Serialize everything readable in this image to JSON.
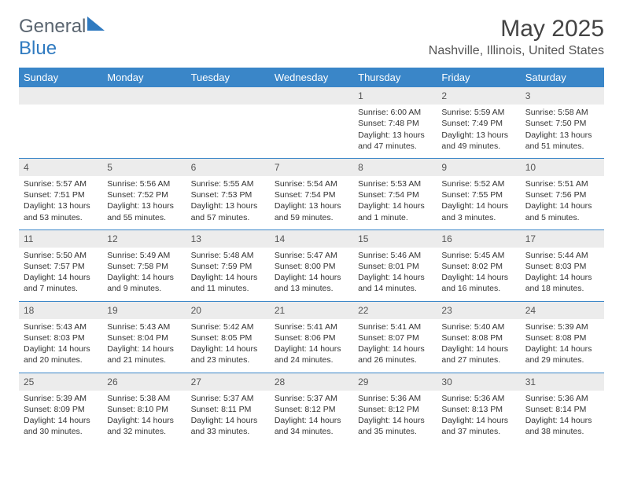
{
  "logo": {
    "general": "General",
    "blue": "Blue"
  },
  "title": "May 2025",
  "location": "Nashville, Illinois, United States",
  "colors": {
    "header_bg": "#3a86c8",
    "header_text": "#ffffff",
    "daynum_bg": "#ececec",
    "row_border": "#3a86c8",
    "logo_gray": "#5a6570",
    "logo_blue": "#2f7ac0"
  },
  "day_headers": [
    "Sunday",
    "Monday",
    "Tuesday",
    "Wednesday",
    "Thursday",
    "Friday",
    "Saturday"
  ],
  "weeks": [
    [
      null,
      null,
      null,
      null,
      {
        "n": "1",
        "sr": "Sunrise: 6:00 AM",
        "ss": "Sunset: 7:48 PM",
        "d1": "Daylight: 13 hours",
        "d2": "and 47 minutes."
      },
      {
        "n": "2",
        "sr": "Sunrise: 5:59 AM",
        "ss": "Sunset: 7:49 PM",
        "d1": "Daylight: 13 hours",
        "d2": "and 49 minutes."
      },
      {
        "n": "3",
        "sr": "Sunrise: 5:58 AM",
        "ss": "Sunset: 7:50 PM",
        "d1": "Daylight: 13 hours",
        "d2": "and 51 minutes."
      }
    ],
    [
      {
        "n": "4",
        "sr": "Sunrise: 5:57 AM",
        "ss": "Sunset: 7:51 PM",
        "d1": "Daylight: 13 hours",
        "d2": "and 53 minutes."
      },
      {
        "n": "5",
        "sr": "Sunrise: 5:56 AM",
        "ss": "Sunset: 7:52 PM",
        "d1": "Daylight: 13 hours",
        "d2": "and 55 minutes."
      },
      {
        "n": "6",
        "sr": "Sunrise: 5:55 AM",
        "ss": "Sunset: 7:53 PM",
        "d1": "Daylight: 13 hours",
        "d2": "and 57 minutes."
      },
      {
        "n": "7",
        "sr": "Sunrise: 5:54 AM",
        "ss": "Sunset: 7:54 PM",
        "d1": "Daylight: 13 hours",
        "d2": "and 59 minutes."
      },
      {
        "n": "8",
        "sr": "Sunrise: 5:53 AM",
        "ss": "Sunset: 7:54 PM",
        "d1": "Daylight: 14 hours",
        "d2": "and 1 minute."
      },
      {
        "n": "9",
        "sr": "Sunrise: 5:52 AM",
        "ss": "Sunset: 7:55 PM",
        "d1": "Daylight: 14 hours",
        "d2": "and 3 minutes."
      },
      {
        "n": "10",
        "sr": "Sunrise: 5:51 AM",
        "ss": "Sunset: 7:56 PM",
        "d1": "Daylight: 14 hours",
        "d2": "and 5 minutes."
      }
    ],
    [
      {
        "n": "11",
        "sr": "Sunrise: 5:50 AM",
        "ss": "Sunset: 7:57 PM",
        "d1": "Daylight: 14 hours",
        "d2": "and 7 minutes."
      },
      {
        "n": "12",
        "sr": "Sunrise: 5:49 AM",
        "ss": "Sunset: 7:58 PM",
        "d1": "Daylight: 14 hours",
        "d2": "and 9 minutes."
      },
      {
        "n": "13",
        "sr": "Sunrise: 5:48 AM",
        "ss": "Sunset: 7:59 PM",
        "d1": "Daylight: 14 hours",
        "d2": "and 11 minutes."
      },
      {
        "n": "14",
        "sr": "Sunrise: 5:47 AM",
        "ss": "Sunset: 8:00 PM",
        "d1": "Daylight: 14 hours",
        "d2": "and 13 minutes."
      },
      {
        "n": "15",
        "sr": "Sunrise: 5:46 AM",
        "ss": "Sunset: 8:01 PM",
        "d1": "Daylight: 14 hours",
        "d2": "and 14 minutes."
      },
      {
        "n": "16",
        "sr": "Sunrise: 5:45 AM",
        "ss": "Sunset: 8:02 PM",
        "d1": "Daylight: 14 hours",
        "d2": "and 16 minutes."
      },
      {
        "n": "17",
        "sr": "Sunrise: 5:44 AM",
        "ss": "Sunset: 8:03 PM",
        "d1": "Daylight: 14 hours",
        "d2": "and 18 minutes."
      }
    ],
    [
      {
        "n": "18",
        "sr": "Sunrise: 5:43 AM",
        "ss": "Sunset: 8:03 PM",
        "d1": "Daylight: 14 hours",
        "d2": "and 20 minutes."
      },
      {
        "n": "19",
        "sr": "Sunrise: 5:43 AM",
        "ss": "Sunset: 8:04 PM",
        "d1": "Daylight: 14 hours",
        "d2": "and 21 minutes."
      },
      {
        "n": "20",
        "sr": "Sunrise: 5:42 AM",
        "ss": "Sunset: 8:05 PM",
        "d1": "Daylight: 14 hours",
        "d2": "and 23 minutes."
      },
      {
        "n": "21",
        "sr": "Sunrise: 5:41 AM",
        "ss": "Sunset: 8:06 PM",
        "d1": "Daylight: 14 hours",
        "d2": "and 24 minutes."
      },
      {
        "n": "22",
        "sr": "Sunrise: 5:41 AM",
        "ss": "Sunset: 8:07 PM",
        "d1": "Daylight: 14 hours",
        "d2": "and 26 minutes."
      },
      {
        "n": "23",
        "sr": "Sunrise: 5:40 AM",
        "ss": "Sunset: 8:08 PM",
        "d1": "Daylight: 14 hours",
        "d2": "and 27 minutes."
      },
      {
        "n": "24",
        "sr": "Sunrise: 5:39 AM",
        "ss": "Sunset: 8:08 PM",
        "d1": "Daylight: 14 hours",
        "d2": "and 29 minutes."
      }
    ],
    [
      {
        "n": "25",
        "sr": "Sunrise: 5:39 AM",
        "ss": "Sunset: 8:09 PM",
        "d1": "Daylight: 14 hours",
        "d2": "and 30 minutes."
      },
      {
        "n": "26",
        "sr": "Sunrise: 5:38 AM",
        "ss": "Sunset: 8:10 PM",
        "d1": "Daylight: 14 hours",
        "d2": "and 32 minutes."
      },
      {
        "n": "27",
        "sr": "Sunrise: 5:37 AM",
        "ss": "Sunset: 8:11 PM",
        "d1": "Daylight: 14 hours",
        "d2": "and 33 minutes."
      },
      {
        "n": "28",
        "sr": "Sunrise: 5:37 AM",
        "ss": "Sunset: 8:12 PM",
        "d1": "Daylight: 14 hours",
        "d2": "and 34 minutes."
      },
      {
        "n": "29",
        "sr": "Sunrise: 5:36 AM",
        "ss": "Sunset: 8:12 PM",
        "d1": "Daylight: 14 hours",
        "d2": "and 35 minutes."
      },
      {
        "n": "30",
        "sr": "Sunrise: 5:36 AM",
        "ss": "Sunset: 8:13 PM",
        "d1": "Daylight: 14 hours",
        "d2": "and 37 minutes."
      },
      {
        "n": "31",
        "sr": "Sunrise: 5:36 AM",
        "ss": "Sunset: 8:14 PM",
        "d1": "Daylight: 14 hours",
        "d2": "and 38 minutes."
      }
    ]
  ]
}
